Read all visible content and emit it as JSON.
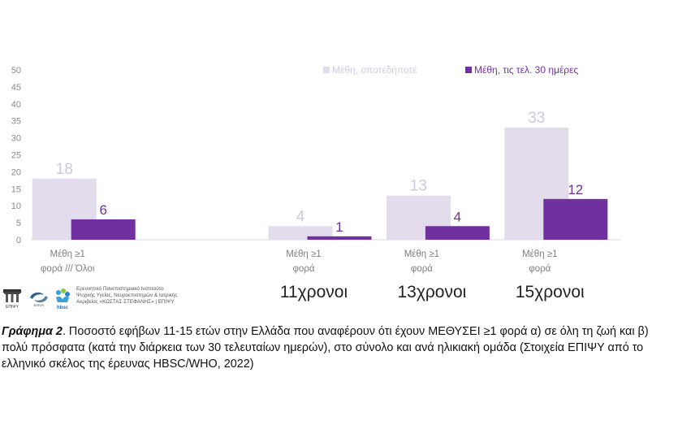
{
  "chart_data": {
    "type": "bar",
    "title": "",
    "xlabel": "",
    "ylabel": "",
    "ylim": [
      0,
      50
    ],
    "yticks": [
      0,
      5,
      10,
      15,
      20,
      25,
      30,
      35,
      40,
      45,
      50
    ],
    "grid": false,
    "legend_position": "top-right",
    "categories": [
      {
        "label_lines": [
          "Μέθη ≥1",
          "φορά /// Όλοι"
        ]
      },
      {
        "label_lines": [
          "Μέθη ≥1",
          "φορά"
        ]
      },
      {
        "label_lines": [
          "Μέθη ≥1",
          "φορά"
        ]
      },
      {
        "label_lines": [
          "Μέθη ≥1",
          "φορά"
        ]
      }
    ],
    "category_slots": [
      0,
      2,
      3,
      4
    ],
    "slot_count": 5,
    "series": [
      {
        "name": "Μέθη, οποτεδήποτε",
        "values": [
          18,
          4,
          13,
          33
        ],
        "color": "#e2dcec",
        "label_color": "#cfc8de"
      },
      {
        "name": "Μέθη, τις τελ. 30 ημέρες",
        "values": [
          6,
          1,
          4,
          12
        ],
        "color": "#7030a0",
        "label_color": "#7030a0"
      }
    ],
    "group_labels": [
      "11χρονοι",
      "13χρονοι",
      "15χρονοι"
    ],
    "group_slots": [
      2,
      3,
      4
    ]
  },
  "logos": {
    "a_icon": "temple-icon",
    "a_text": "ΕΠΙΨΥ",
    "b_icon": "swirl-icon",
    "b_text": "ΕΠΙΨΥ",
    "c_icon": "hbsc-icon",
    "c_text": "hbsc",
    "text_lines": [
      "Ερευνητικό Πανεπιστημιακό Ινστιτούτο",
      "Ψυχικής Υγείας, Νευροεπιστημών & Ιατρικής",
      "Ακριβείας «ΚΩΣΤΑΣ ΣΤΕΦΑΝΗΣ» | ΕΠΙΨΥ"
    ]
  },
  "caption": {
    "bold": "Γράφημα 2",
    "text": ". Ποσοστό εφήβων 11-15 ετών στην Ελλάδα που αναφέρουν ότι έχουν ΜΕΘΥΣΕΙ ≥1 φορά α) σε όλη τη ζωή και β) πολύ πρόσφατα (κατά την διάρκεια των 30 τελευταίων ημερών), στο σύνολο και ανά ηλικιακή ομάδα (Στοιχεία ΕΠΙΨΥ από το ελληνικό σκέλος της έρευνας HBSC/WHO, 2022)"
  }
}
